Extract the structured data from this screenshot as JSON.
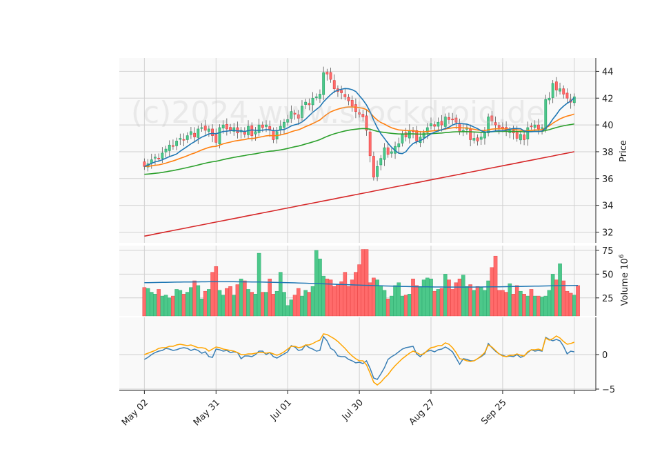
{
  "watermark": "(c)2024 www.stockdroid.de",
  "colors": {
    "up": "#26a269",
    "up_fill": "#4cc88a",
    "down": "#e23a3a",
    "down_fill": "#ff6b6b",
    "ma_short": "#1f77b4",
    "ma_mid": "#ff7f0e",
    "ma_long": "#2ca02c",
    "ma_200": "#d62728",
    "vol_ma": "#1f77b4",
    "macd": "#3a7fb5",
    "signal": "#ffa500"
  },
  "chart_data": [
    {
      "type": "candlestick",
      "ylabel": "Price",
      "ylim": [
        31.2,
        45
      ],
      "yticks": [
        32,
        34,
        36,
        38,
        40,
        42,
        44
      ],
      "x_tick_labels": [
        "May 02",
        "May 31",
        "Jul 01",
        "Jul 30",
        "Aug 27",
        "Sep 25",
        ""
      ],
      "x_tick_index": [
        0,
        20,
        40,
        60,
        80,
        100,
        120
      ],
      "x_range": [
        -7,
        126
      ],
      "close": [
        36.9,
        37.1,
        37.4,
        37.6,
        37.5,
        37.9,
        38.2,
        38.5,
        38.4,
        38.8,
        39.0,
        38.9,
        39.2,
        39.5,
        39.1,
        39.7,
        39.8,
        39.6,
        39.7,
        39.2,
        38.7,
        39.8,
        40.0,
        39.7,
        39.6,
        39.8,
        39.4,
        39.6,
        39.3,
        39.9,
        39.2,
        39.5,
        40.0,
        39.8,
        40.0,
        39.6,
        38.9,
        39.5,
        39.9,
        40.2,
        40.4,
        41.0,
        40.8,
        40.5,
        41.4,
        41.7,
        41.5,
        42.0,
        42.1,
        42.3,
        43.9,
        43.8,
        43.4,
        42.7,
        42.5,
        42.4,
        42.1,
        41.8,
        41.4,
        41.0,
        40.8,
        40.6,
        39.6,
        37.7,
        36.1,
        36.9,
        37.5,
        38.3,
        37.8,
        38.0,
        38.4,
        38.6,
        39.3,
        39.1,
        39.6,
        39.5,
        38.8,
        39.1,
        39.4,
        39.8,
        40.1,
        39.9,
        40.2,
        40.0,
        40.6,
        40.4,
        40.4,
        40.2,
        39.5,
        39.6,
        39.8,
        38.9,
        39.0,
        38.8,
        39.1,
        39.4,
        40.6,
        40.3,
        40.0,
        39.8,
        39.7,
        39.5,
        39.6,
        39.4,
        39.0,
        39.3,
        38.9,
        39.8,
        39.9,
        40.0,
        39.7,
        39.8,
        41.9,
        42.0,
        43.1,
        42.6,
        42.7,
        42.3,
        42.0,
        41.7,
        42.1
      ],
      "ma_short_label": "",
      "ma_mid_label": "",
      "ma_long_label": "",
      "ma_200": [
        31.7,
        38.0
      ]
    },
    {
      "type": "bar",
      "ylabel": "Volume",
      "yunit": "10^6",
      "ylim": [
        6,
        80
      ],
      "yticks": [
        25,
        50,
        75
      ],
      "volume": [
        36,
        35,
        31,
        29,
        34,
        27,
        28,
        25,
        27,
        34,
        33,
        29,
        31,
        36,
        43,
        38,
        24,
        32,
        34,
        52,
        58,
        33,
        28,
        35,
        37,
        28,
        39,
        45,
        43,
        34,
        31,
        29,
        72,
        31,
        31,
        45,
        29,
        32,
        52,
        31,
        17,
        23,
        28,
        35,
        27,
        33,
        31,
        37,
        75,
        66,
        48,
        45,
        44,
        37,
        39,
        42,
        52,
        37,
        44,
        52,
        60,
        76,
        76,
        41,
        46,
        44,
        38,
        33,
        24,
        27,
        38,
        41,
        27,
        28,
        29,
        45,
        38,
        37,
        44,
        46,
        45,
        32,
        34,
        35,
        50,
        44,
        34,
        41,
        45,
        49,
        37,
        39,
        33,
        37,
        36,
        33,
        43,
        57,
        69,
        33,
        33,
        31,
        40,
        29,
        38,
        32,
        29,
        27,
        34,
        27,
        27,
        26,
        27,
        33,
        50,
        44,
        61,
        43,
        32,
        30,
        28,
        38
      ],
      "volume_ma": [
        41,
        37
      ]
    },
    {
      "type": "line",
      "ylim": [
        -5.2,
        5.4
      ],
      "yticks": [
        -5,
        0
      ],
      "macd": [
        -0.7,
        -0.4,
        0.0,
        0.3,
        0.5,
        0.6,
        0.9,
        0.8,
        0.6,
        0.7,
        0.9,
        1.0,
        0.9,
        0.6,
        0.8,
        0.6,
        0.2,
        0.4,
        -0.3,
        -0.4,
        0.8,
        0.7,
        0.5,
        0.6,
        0.3,
        0.4,
        0.3,
        -0.6,
        -0.2,
        -0.2,
        -0.3,
        0.0,
        0.5,
        0.5,
        0.0,
        0.3,
        -0.3,
        -0.5,
        -0.2,
        0.1,
        0.4,
        1.3,
        1.1,
        0.6,
        0.7,
        1.4,
        1.0,
        0.8,
        0.5,
        0.6,
        2.6,
        2.0,
        0.9,
        0.6,
        -0.2,
        -0.3,
        -0.3,
        -0.7,
        -0.9,
        -1.2,
        -1.1,
        -1.3,
        -0.9,
        -2.0,
        -3.4,
        -3.6,
        -2.8,
        -1.9,
        -0.7,
        -0.3,
        0.0,
        0.4,
        0.8,
        1.0,
        1.1,
        1.2,
        0.1,
        -0.3,
        0.2,
        0.5,
        0.6,
        0.4,
        0.7,
        0.8,
        1.1,
        0.8,
        0.4,
        -0.5,
        -1.4,
        -0.6,
        -0.7,
        -0.9,
        -0.9,
        -0.6,
        -0.3,
        0.1,
        1.6,
        1.0,
        0.5,
        0.1,
        -0.1,
        -0.3,
        -0.2,
        -0.3,
        0.0,
        -0.4,
        -0.2,
        0.3,
        0.7,
        0.5,
        0.6,
        0.5,
        2.5,
        2.2,
        2.0,
        2.2,
        2.0,
        1.2,
        0.1,
        0.5,
        0.4
      ],
      "signal": [
        0.0,
        0.2,
        0.4,
        0.6,
        0.9,
        1.0,
        1.0,
        1.2,
        1.2,
        1.4,
        1.5,
        1.4,
        1.3,
        1.4,
        1.2,
        1.0,
        1.0,
        0.9,
        0.5,
        0.8,
        1.1,
        1.0,
        0.8,
        0.7,
        0.6,
        0.5,
        0.3,
        0.0,
        0.0,
        0.1,
        0.1,
        0.2,
        0.3,
        0.3,
        0.2,
        0.3,
        0.1,
        -0.1,
        0.1,
        0.4,
        0.8,
        1.2,
        1.2,
        1.0,
        1.1,
        1.4,
        1.4,
        1.6,
        1.9,
        2.1,
        3.0,
        2.9,
        2.6,
        2.3,
        1.9,
        1.4,
        0.9,
        0.3,
        -0.2,
        -0.6,
        -0.9,
        -0.9,
        -1.5,
        -2.7,
        -4.0,
        -4.4,
        -4.0,
        -3.4,
        -2.9,
        -2.2,
        -1.6,
        -1.1,
        -0.6,
        -0.2,
        0.2,
        0.5,
        0.3,
        0.0,
        0.1,
        0.6,
        1.0,
        1.1,
        1.3,
        1.3,
        1.7,
        1.5,
        1.0,
        0.3,
        -0.6,
        -0.7,
        -0.9,
        -1.0,
        -0.9,
        -0.6,
        -0.2,
        0.3,
        1.4,
        1.1,
        0.6,
        0.1,
        -0.2,
        -0.3,
        -0.1,
        -0.1,
        0.1,
        -0.1,
        -0.2,
        0.4,
        0.7,
        0.7,
        0.8,
        0.6,
        2.4,
        2.1,
        2.3,
        2.7,
        2.4,
        1.9,
        1.5,
        1.6,
        1.8
      ]
    }
  ]
}
